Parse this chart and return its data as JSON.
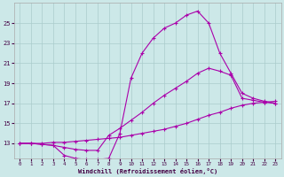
{
  "xlabel": "Windchill (Refroidissement éolien,°C)",
  "background_color": "#cce8e8",
  "grid_color": "#aacccc",
  "line_color": "#aa00aa",
  "xlim": [
    -0.5,
    23.5
  ],
  "ylim": [
    11.5,
    27
  ],
  "xticks": [
    0,
    1,
    2,
    3,
    4,
    5,
    6,
    7,
    8,
    9,
    10,
    11,
    12,
    13,
    14,
    15,
    16,
    17,
    18,
    19,
    20,
    21,
    22,
    23
  ],
  "yticks": [
    13,
    15,
    17,
    19,
    21,
    23,
    25
  ],
  "lines": [
    {
      "x": [
        0,
        1,
        2,
        3,
        4,
        5,
        6,
        7,
        8,
        9,
        10,
        11,
        12,
        13,
        14,
        15,
        16,
        17,
        18,
        19,
        20,
        21,
        22,
        23
      ],
      "y": [
        13,
        13,
        12.9,
        12.8,
        11.8,
        11.5,
        11.4,
        11.4,
        11.5,
        14.0,
        19.5,
        22.0,
        23.5,
        24.5,
        25.0,
        25.8,
        26.2,
        25.0,
        22.0,
        20.0,
        18.0,
        17.5,
        17.2,
        17.0
      ]
    },
    {
      "x": [
        0,
        1,
        2,
        3,
        4,
        5,
        6,
        7,
        8,
        9,
        10,
        11,
        12,
        13,
        14,
        15,
        16,
        17,
        18,
        19,
        20,
        21,
        22,
        23
      ],
      "y": [
        13,
        13,
        12.9,
        12.8,
        12.6,
        12.4,
        12.3,
        12.3,
        13.8,
        14.5,
        15.3,
        16.1,
        17.0,
        17.8,
        18.5,
        19.2,
        20.0,
        20.5,
        20.2,
        19.8,
        17.5,
        17.3,
        17.1,
        17.0
      ]
    },
    {
      "x": [
        0,
        1,
        2,
        3,
        4,
        5,
        6,
        7,
        8,
        9,
        10,
        11,
        12,
        13,
        14,
        15,
        16,
        17,
        18,
        19,
        20,
        21,
        22,
        23
      ],
      "y": [
        13,
        13,
        13.0,
        13.1,
        13.1,
        13.2,
        13.3,
        13.4,
        13.5,
        13.6,
        13.8,
        14.0,
        14.2,
        14.4,
        14.7,
        15.0,
        15.4,
        15.8,
        16.1,
        16.5,
        16.8,
        17.0,
        17.1,
        17.2
      ]
    }
  ]
}
